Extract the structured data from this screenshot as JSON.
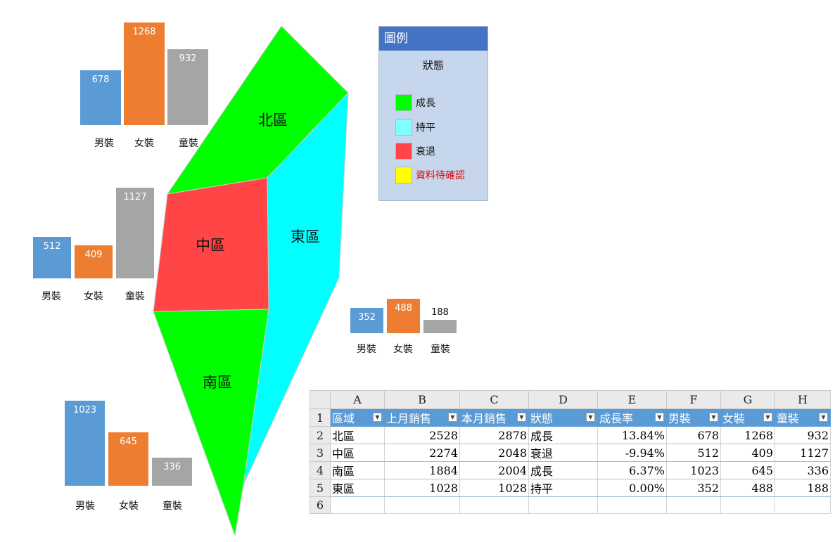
{
  "regions": {
    "north": {
      "name": "北區",
      "color": "#00ff00"
    },
    "middle": {
      "name": "中區",
      "color": "#ff4545"
    },
    "east": {
      "name": "東區",
      "color": "#00ffff"
    },
    "south": {
      "name": "南區",
      "color": "#00ff00"
    }
  },
  "bar_colors": {
    "male": "#5b9bd5",
    "female": "#ed7d31",
    "kids": "#a5a5a5"
  },
  "chart_data": [
    {
      "type": "bar",
      "categories": [
        "男裝",
        "女裝",
        "童裝"
      ],
      "values": [
        678,
        1268,
        932
      ],
      "title": ""
    },
    {
      "type": "bar",
      "categories": [
        "男裝",
        "女裝",
        "童裝"
      ],
      "values": [
        512,
        409,
        1127
      ],
      "title": ""
    },
    {
      "type": "bar",
      "categories": [
        "男裝",
        "女裝",
        "童裝"
      ],
      "values": [
        352,
        488,
        188
      ],
      "title": ""
    },
    {
      "type": "bar",
      "categories": [
        "男裝",
        "女裝",
        "童裝"
      ],
      "values": [
        1023,
        645,
        336
      ],
      "title": ""
    }
  ],
  "legend": {
    "title": "圖例",
    "subtitle": "狀態",
    "items": [
      {
        "label": "成長",
        "color": "#00ff00",
        "text_color": "#111111"
      },
      {
        "label": "持平",
        "color": "#80ffff",
        "text_color": "#111111"
      },
      {
        "label": "衰退",
        "color": "#ff4545",
        "text_color": "#111111"
      },
      {
        "label": "資料待確認",
        "color": "#ffff00",
        "text_color": "#e00000"
      }
    ]
  },
  "sheet": {
    "columns": [
      "A",
      "B",
      "C",
      "D",
      "E",
      "F",
      "G",
      "H"
    ],
    "row_numbers": [
      "1",
      "2",
      "3",
      "4",
      "5",
      "6"
    ],
    "headers": [
      "區域",
      "上月銷售",
      "本月銷售",
      "狀態",
      "成長率",
      "男裝",
      "女裝",
      "童裝"
    ],
    "rows": [
      [
        "北區",
        "2528",
        "2878",
        "成長",
        "13.84%",
        "678",
        "1268",
        "932"
      ],
      [
        "中區",
        "2274",
        "2048",
        "衰退",
        "-9.94%",
        "512",
        "409",
        "1127"
      ],
      [
        "南區",
        "1884",
        "2004",
        "成長",
        "6.37%",
        "1023",
        "645",
        "336"
      ],
      [
        "東區",
        "1028",
        "1028",
        "持平",
        "0.00%",
        "352",
        "488",
        "188"
      ]
    ]
  }
}
